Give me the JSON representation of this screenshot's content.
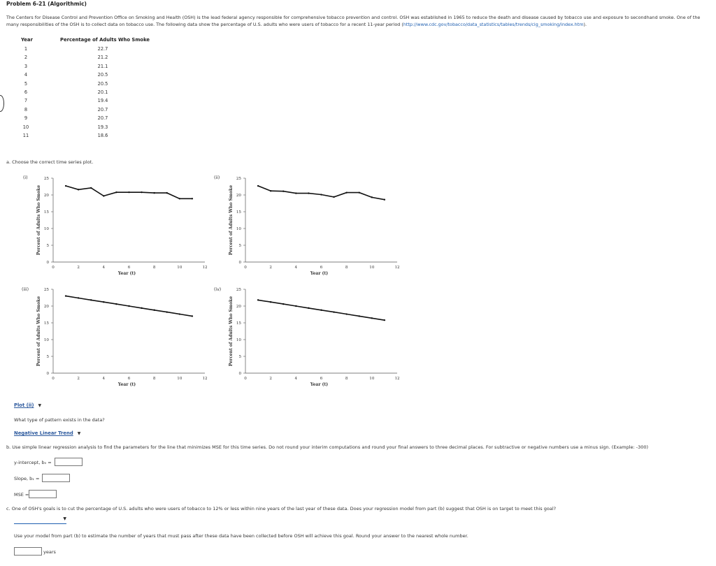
{
  "problem": {
    "title": "Problem 6-21 (Algorithmic)",
    "intro_text": "The Centers for Disease Control and Prevention Office on Smoking and Health (OSH) is the lead federal agency responsible for comprehensive tobacco prevention and control. OSH was established in 1965 to reduce the death and disease caused by tobacco use and exposure to secondhand smoke. One of the many responsibilities of the OSH is to collect data on tobacco use. The following data show the percentage of U.S. adults who were users of tobacco for a recent 11-year period (",
    "intro_link": "http://www.cdc.gov/tobacco/data_statistics/tables/trends/cig_smoking/index.htm",
    "intro_end": ")."
  },
  "table": {
    "col_year": "Year",
    "col_pct": "Percentage of Adults Who Smoke",
    "rows": [
      {
        "year": "1",
        "pct": "22.7"
      },
      {
        "year": "2",
        "pct": "21.2"
      },
      {
        "year": "3",
        "pct": "21.1"
      },
      {
        "year": "4",
        "pct": "20.5"
      },
      {
        "year": "5",
        "pct": "20.5"
      },
      {
        "year": "6",
        "pct": "20.1"
      },
      {
        "year": "7",
        "pct": "19.4"
      },
      {
        "year": "8",
        "pct": "20.7"
      },
      {
        "year": "9",
        "pct": "20.7"
      },
      {
        "year": "10",
        "pct": "19.3"
      },
      {
        "year": "11",
        "pct": "18.6"
      }
    ]
  },
  "part_a": {
    "question": "a. Choose the correct time series plot.",
    "plot_select_value": "Plot (ii)",
    "pattern_question": "What type of pattern exists in the data?",
    "pattern_select_value": "Negative Linear Trend"
  },
  "chart_data": [
    {
      "type": "line",
      "roman": "(i)",
      "ylabel": "Percent of Adults Who Smoke",
      "xlabel": "Year (t)",
      "xlim": [
        0,
        12
      ],
      "ylim": [
        0,
        25
      ],
      "xticks": [
        "0",
        "2",
        "4",
        "6",
        "8",
        "10",
        "12"
      ],
      "yticks": [
        "0",
        "5",
        "10",
        "15",
        "20",
        "25"
      ],
      "x": [
        1,
        2,
        3,
        4,
        5,
        6,
        7,
        8,
        9,
        10,
        11
      ],
      "y": [
        22.7,
        21.6,
        22.1,
        19.7,
        20.8,
        20.8,
        20.8,
        20.6,
        20.6,
        18.9,
        18.9
      ]
    },
    {
      "type": "line",
      "roman": "(ii)",
      "ylabel": "Percent of Adults Who Smoke",
      "xlabel": "Year (t)",
      "xlim": [
        0,
        12
      ],
      "ylim": [
        0,
        25
      ],
      "xticks": [
        "0",
        "2",
        "4",
        "6",
        "8",
        "10",
        "12"
      ],
      "yticks": [
        "0",
        "5",
        "10",
        "15",
        "20",
        "25"
      ],
      "x": [
        1,
        2,
        3,
        4,
        5,
        6,
        7,
        8,
        9,
        10,
        11
      ],
      "y": [
        22.7,
        21.2,
        21.1,
        20.5,
        20.5,
        20.1,
        19.4,
        20.7,
        20.7,
        19.3,
        18.6
      ]
    },
    {
      "type": "line",
      "roman": "(iii)",
      "ylabel": "Percent of Adults Who Smoke",
      "xlabel": "Year (t)",
      "xlim": [
        0,
        12
      ],
      "ylim": [
        0,
        25
      ],
      "xticks": [
        "0",
        "2",
        "4",
        "6",
        "8",
        "10",
        "12"
      ],
      "yticks": [
        "0",
        "5",
        "10",
        "15",
        "20",
        "25"
      ],
      "x": [
        1,
        2,
        3,
        4,
        5,
        6,
        7,
        8,
        9,
        10,
        11
      ],
      "y": [
        23.0,
        22.4,
        21.8,
        21.2,
        20.6,
        20.0,
        19.4,
        18.8,
        18.2,
        17.6,
        17.0
      ]
    },
    {
      "type": "line",
      "roman": "(iv)",
      "ylabel": "Percent of Adults Who Smoke",
      "xlabel": "Year (t)",
      "xlim": [
        0,
        12
      ],
      "ylim": [
        0,
        25
      ],
      "xticks": [
        "0",
        "2",
        "4",
        "6",
        "8",
        "10",
        "12"
      ],
      "yticks": [
        "0",
        "5",
        "10",
        "15",
        "20",
        "25"
      ],
      "x": [
        1,
        2,
        3,
        4,
        5,
        6,
        7,
        8,
        9,
        10,
        11
      ],
      "y": [
        21.8,
        21.2,
        20.6,
        20.0,
        19.4,
        18.8,
        18.2,
        17.6,
        17.0,
        16.4,
        15.8
      ]
    }
  ],
  "part_b": {
    "question": "b. Use simple linear regression analysis to find the parameters for the line that minimizes MSE for this time series. Do not round your interim computations and round your final answers to three decimal places. For subtractive or negative numbers use a minus sign. (Example: -300)",
    "intercept_label": "y-intercept, b₀ =",
    "slope_label": "Slope, b₁ =",
    "mse_label": "MSE ="
  },
  "part_c": {
    "question": "c. One of OSH's goals is to cut the percentage of U.S. adults who were users of tobacco to 12% or less within nine years of the last year of these data. Does your regression model from part (b) suggest that OSH is on target to meet this goal?",
    "estimate_question": "Use your model from part (b) to estimate the number of years that must pass after these data have been collected before OSH will achieve this goal. Round your answer to the nearest whole number.",
    "years_unit": "years"
  }
}
